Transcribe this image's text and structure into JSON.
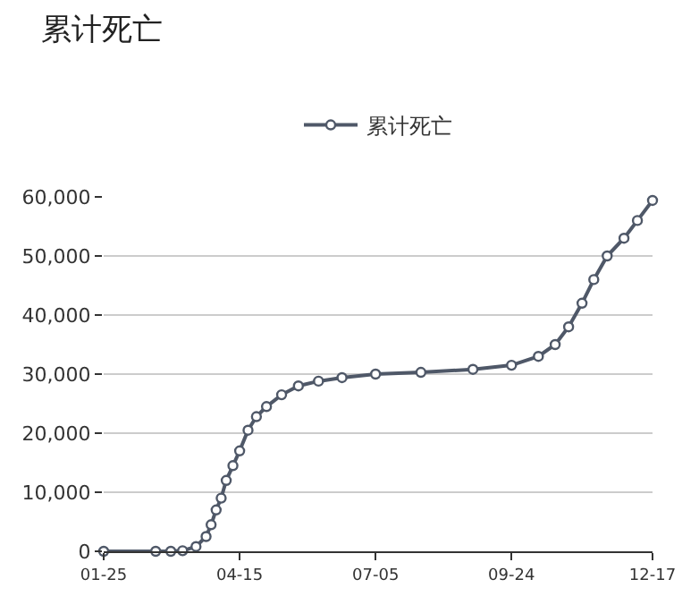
{
  "chart_data": {
    "type": "line",
    "title": "累计死亡",
    "x": [
      "--01-25",
      "--02-25",
      "--03-05",
      "--03-12",
      "--03-20",
      "--03-26",
      "--03-29",
      "--04-01",
      "--04-04",
      "--04-07",
      "--04-11",
      "--04-15",
      "--04-20",
      "--04-25",
      "--05-01",
      "--05-10",
      "--05-20",
      "--06-01",
      "--06-15",
      "--07-05",
      "--08-01",
      "--09-01",
      "--09-24",
      "--10-10",
      "--10-20",
      "--10-28",
      "--11-05",
      "--11-12",
      "--11-20",
      "--11-30",
      "--12-08",
      "--12-17"
    ],
    "series": [
      {
        "name": "累计死亡",
        "color": "#4f5868",
        "values": [
          0,
          0,
          0,
          100,
          800,
          2500,
          4500,
          7000,
          9000,
          12000,
          14500,
          17000,
          20500,
          22800,
          24500,
          26500,
          28000,
          28800,
          29400,
          30000,
          30300,
          30800,
          31500,
          33000,
          35000,
          38000,
          42000,
          46000,
          50000,
          53000,
          56000,
          59400
        ]
      }
    ],
    "xlim": [
      "--01-25",
      "--12-17"
    ],
    "xticks": [
      {
        "value": "--01-25",
        "label": "01-25"
      },
      {
        "value": "--04-15",
        "label": "04-15"
      },
      {
        "value": "--07-05",
        "label": "07-05"
      },
      {
        "value": "--09-24",
        "label": "09-24"
      },
      {
        "value": "--12-17",
        "label": "12-17"
      }
    ],
    "ylim": [
      0,
      60000
    ],
    "yticks": [
      {
        "value": 0,
        "label": "0"
      },
      {
        "value": 10000,
        "label": "10,000"
      },
      {
        "value": 20000,
        "label": "20,000"
      },
      {
        "value": 30000,
        "label": "30,000"
      },
      {
        "value": 40000,
        "label": "40,000"
      },
      {
        "value": 50000,
        "label": "50,000"
      },
      {
        "value": 60000,
        "label": "60,000"
      }
    ],
    "grid": "y",
    "legend": "top",
    "marker": "circle",
    "line_style": "solid"
  }
}
